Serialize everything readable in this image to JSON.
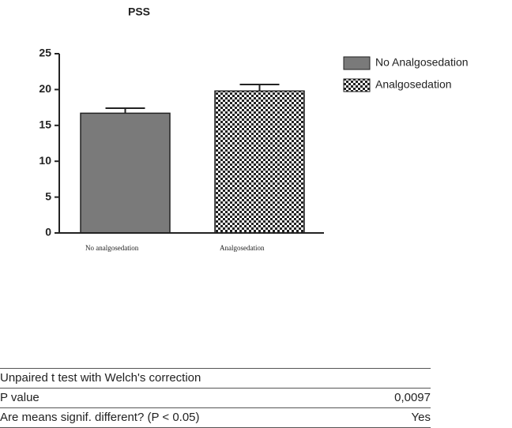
{
  "chart_data": {
    "type": "bar",
    "title": "PSS",
    "categories": [
      "No analgosedation",
      "Analgosedation"
    ],
    "values": [
      16.7,
      19.8
    ],
    "errors": [
      0.7,
      0.9
    ],
    "legend": [
      "No Analgosedation",
      "Analgosedation"
    ],
    "patterns": [
      "solid",
      "checkered"
    ],
    "colors": [
      "#7a7a7a",
      "#222222"
    ],
    "ylim": [
      0,
      25
    ],
    "yticks": [
      0,
      5,
      10,
      15,
      20,
      25
    ],
    "grid": false
  },
  "table": {
    "title": "Unpaired t test with Welch's correction",
    "rows": [
      [
        "P value",
        "0,0097"
      ],
      [
        "Are means signif. different? (P < 0.05)",
        "Yes"
      ]
    ]
  }
}
